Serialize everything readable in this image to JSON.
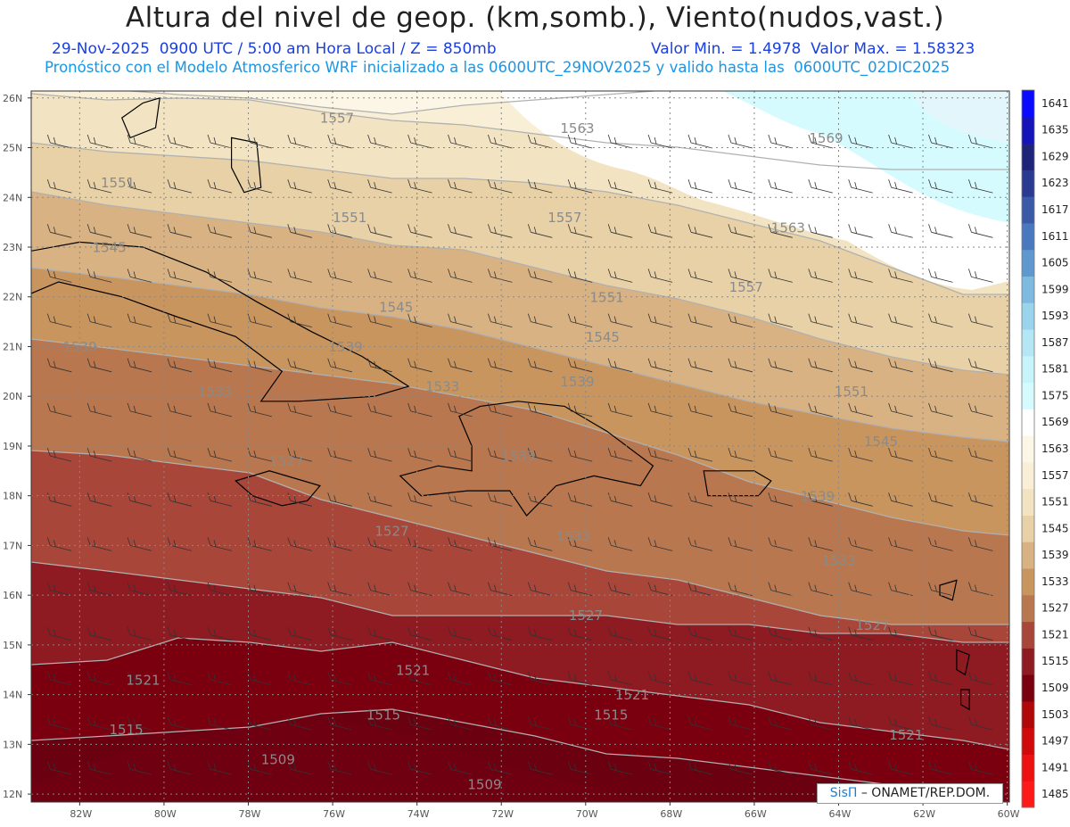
{
  "title": "Altura del nivel de geop. (km,somb.), Viento(nudos,vast.)",
  "subtitle_left": "29-Nov-2025  0900 UTC / 5:00 am Hora Local / Z = 850mb",
  "subtitle_right": "Valor Min. = 1.4978  Valor Max. = 1.58323",
  "subtitle2": "Pronóstico con el Modelo Atmosferico WRF inicializado a las 0600UTC_29NOV2025 y valido hasta las  0600UTC_02DIC2025",
  "credit": {
    "brand": "SisΠ",
    "rest": " – ONAMET/REP.DOM."
  },
  "lat_labels": [
    "12N",
    "13N",
    "14N",
    "15N",
    "16N",
    "17N",
    "18N",
    "19N",
    "20N",
    "21N",
    "22N",
    "23N",
    "24N",
    "25N",
    "26N"
  ],
  "lon_labels": [
    "82W",
    "80W",
    "78W",
    "76W",
    "74W",
    "72W",
    "70W",
    "68W",
    "66W",
    "64W",
    "62W",
    "60W"
  ],
  "colorbar": {
    "levels": [
      "1485",
      "1491",
      "1497",
      "1503",
      "1509",
      "1515",
      "1521",
      "1527",
      "1533",
      "1539",
      "1545",
      "1551",
      "1557",
      "1563",
      "1569",
      "1575",
      "1581",
      "1587",
      "1593",
      "1599",
      "1605",
      "1611",
      "1617",
      "1623",
      "1629",
      "1635",
      "1641"
    ],
    "colors": [
      "#ff1a1a",
      "#ee1111",
      "#d00a0a",
      "#b00808",
      "#7a0010",
      "#8e1a22",
      "#a8463a",
      "#b8774f",
      "#c9955f",
      "#d9b283",
      "#e8d1a6",
      "#f2e4c3",
      "#f8efd6",
      "#fcf6e6",
      "#ffffff",
      "#d6fbff",
      "#c7f3fb",
      "#b4e6f4",
      "#99d3ec",
      "#7eb9e0",
      "#5f97cf",
      "#4a78bf",
      "#3a5aa8",
      "#2a3a90",
      "#1f2478",
      "#1414b8",
      "#0a0aff"
    ]
  },
  "contour_labels": [
    {
      "text": "1557",
      "lon": -76.3,
      "lat": 25.5
    },
    {
      "text": "1563",
      "lon": -70.6,
      "lat": 25.3
    },
    {
      "text": "1569",
      "lon": -64.7,
      "lat": 25.1
    },
    {
      "text": "1551",
      "lon": -81.5,
      "lat": 24.2
    },
    {
      "text": "1551",
      "lon": -76.0,
      "lat": 23.5
    },
    {
      "text": "1557",
      "lon": -70.9,
      "lat": 23.5
    },
    {
      "text": "1563",
      "lon": -65.6,
      "lat": 23.3
    },
    {
      "text": "1545",
      "lon": -81.7,
      "lat": 22.9
    },
    {
      "text": "1557",
      "lon": -66.6,
      "lat": 22.1
    },
    {
      "text": "1551",
      "lon": -69.9,
      "lat": 21.9
    },
    {
      "text": "1545",
      "lon": -74.9,
      "lat": 21.7
    },
    {
      "text": "1545",
      "lon": -70.0,
      "lat": 21.1
    },
    {
      "text": "1539",
      "lon": -82.4,
      "lat": 20.9
    },
    {
      "text": "1539",
      "lon": -76.1,
      "lat": 20.9
    },
    {
      "text": "1539",
      "lon": -70.6,
      "lat": 20.2
    },
    {
      "text": "1551",
      "lon": -64.1,
      "lat": 20.0
    },
    {
      "text": "1533",
      "lon": -79.2,
      "lat": 20.0
    },
    {
      "text": "1533",
      "lon": -73.8,
      "lat": 20.1
    },
    {
      "text": "1545",
      "lon": -63.4,
      "lat": 19.0
    },
    {
      "text": "1533",
      "lon": -72.0,
      "lat": 18.7
    },
    {
      "text": "1527",
      "lon": -77.5,
      "lat": 18.6
    },
    {
      "text": "1539",
      "lon": -64.9,
      "lat": 17.9
    },
    {
      "text": "1527",
      "lon": -75.0,
      "lat": 17.2
    },
    {
      "text": "1533",
      "lon": -70.7,
      "lat": 17.1
    },
    {
      "text": "1533",
      "lon": -64.4,
      "lat": 16.6
    },
    {
      "text": "1527",
      "lon": -70.4,
      "lat": 15.5
    },
    {
      "text": "1527",
      "lon": -63.6,
      "lat": 15.3
    },
    {
      "text": "1521",
      "lon": -80.9,
      "lat": 14.2
    },
    {
      "text": "1521",
      "lon": -74.5,
      "lat": 14.4
    },
    {
      "text": "1521",
      "lon": -69.3,
      "lat": 13.9
    },
    {
      "text": "1515",
      "lon": -75.2,
      "lat": 13.5
    },
    {
      "text": "1515",
      "lon": -69.8,
      "lat": 13.5
    },
    {
      "text": "1521",
      "lon": -62.8,
      "lat": 13.1
    },
    {
      "text": "1515",
      "lon": -81.3,
      "lat": 13.2
    },
    {
      "text": "1509",
      "lon": -77.7,
      "lat": 12.6
    },
    {
      "text": "1509",
      "lon": -72.8,
      "lat": 12.1
    }
  ]
}
